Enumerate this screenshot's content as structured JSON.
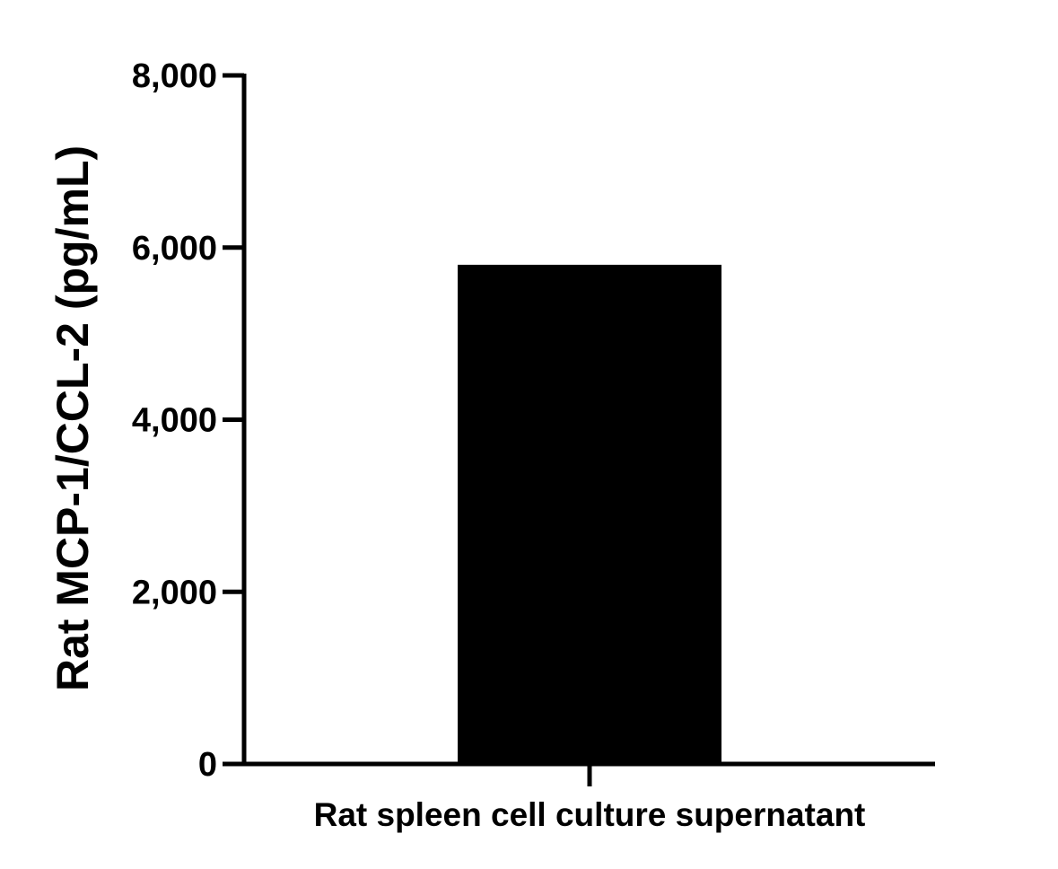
{
  "chart_data": {
    "type": "bar",
    "title": "",
    "categories": [
      "Rat spleen cell culture supernatant"
    ],
    "values": [
      5800
    ],
    "xlabel": "",
    "ylabel": "Rat MCP-1/CCL-2 (pg/mL)",
    "ylim": [
      0,
      8000
    ],
    "yticks": [
      0,
      2000,
      4000,
      6000,
      8000
    ],
    "ytick_labels": [
      "0",
      "2,000",
      "4,000",
      "6,000",
      "8,000"
    ],
    "grid": false,
    "legend": "none",
    "bar_color": "#000000",
    "axis_color": "#000000"
  }
}
